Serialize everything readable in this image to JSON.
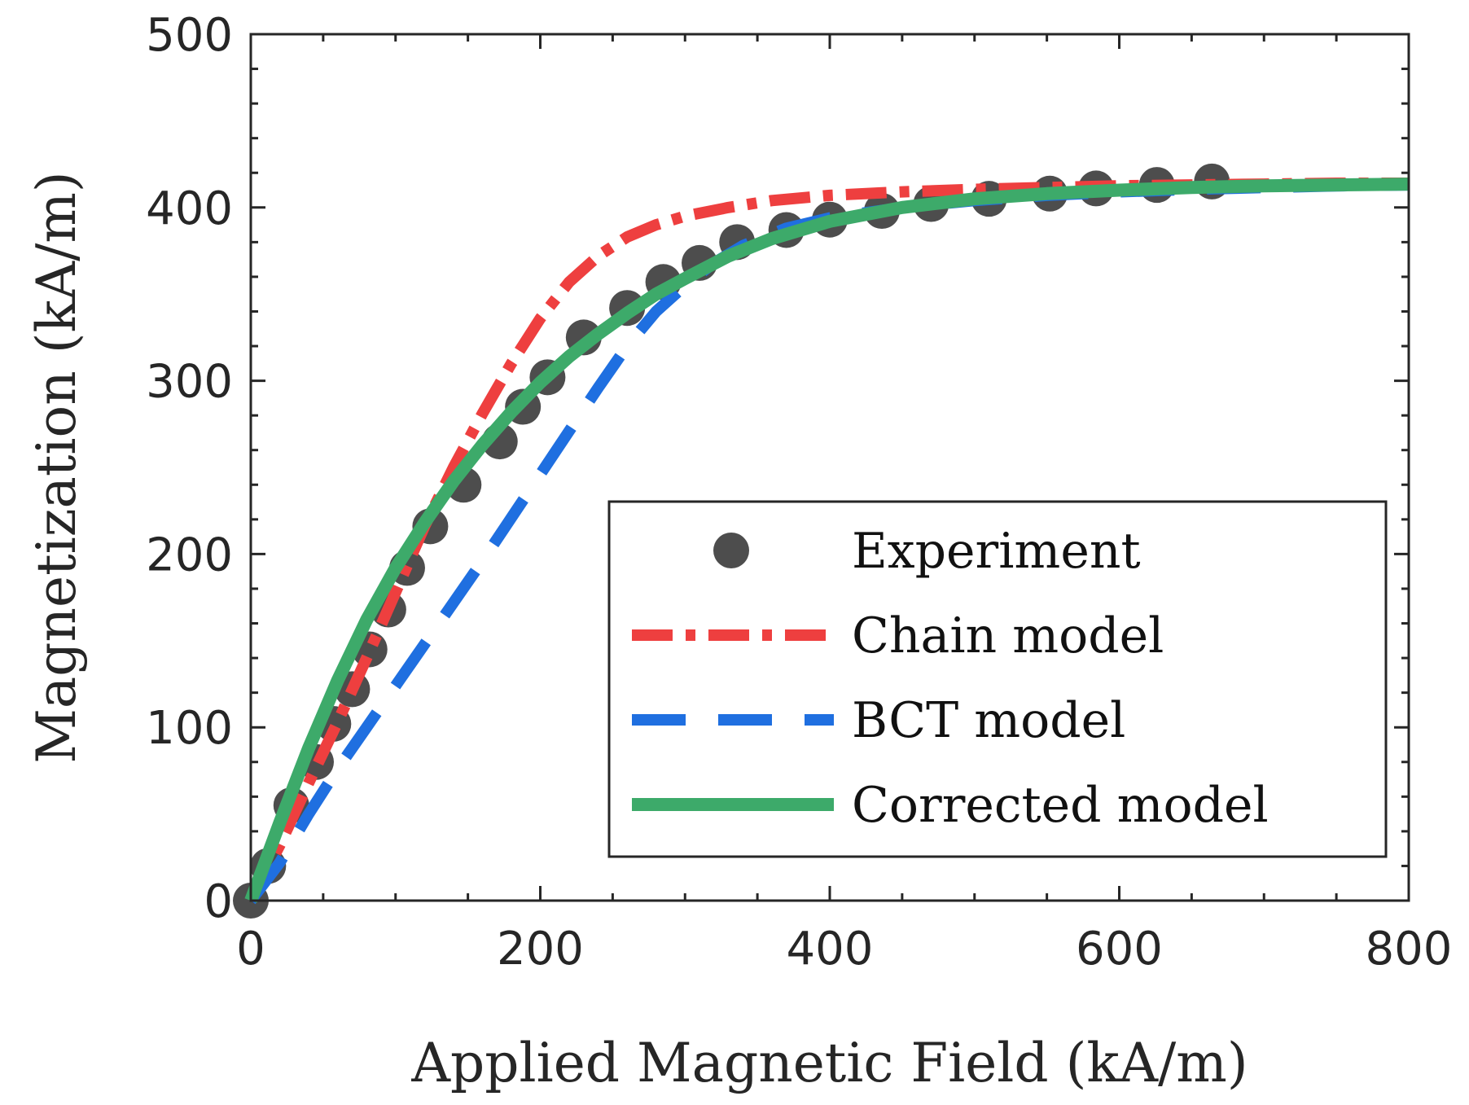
{
  "chart_data": {
    "type": "line",
    "title": "",
    "xlabel": "Applied Magnetic Field (kA/m)",
    "ylabel": "Magnetization (kA/m)",
    "xlim": [
      0,
      800
    ],
    "ylim": [
      0,
      500
    ],
    "xticks": [
      0,
      200,
      400,
      600,
      800
    ],
    "yticks": [
      0,
      100,
      200,
      300,
      400,
      500
    ],
    "grid": false,
    "legend_position": "bottom-right",
    "series": [
      {
        "name": "Experiment",
        "style": "markers",
        "color": "#4d4d4d",
        "x": [
          0,
          12,
          28,
          45,
          57,
          70,
          82,
          95,
          108,
          124,
          147,
          172,
          188,
          205,
          230,
          260,
          285,
          310,
          336,
          370,
          400,
          436,
          470,
          510,
          552,
          584,
          626,
          664
        ],
        "y": [
          0,
          20,
          55,
          80,
          102,
          122,
          145,
          168,
          192,
          216,
          240,
          265,
          285,
          302,
          325,
          342,
          357,
          368,
          380,
          387,
          393,
          398,
          402,
          405,
          408,
          411,
          413,
          415
        ]
      },
      {
        "name": "Chain model",
        "style": "dash-dot",
        "color": "#ee3f3f",
        "x": [
          0,
          20,
          40,
          60,
          80,
          100,
          120,
          140,
          160,
          180,
          200,
          220,
          240,
          260,
          280,
          300,
          330,
          360,
          400,
          450,
          500,
          550,
          600,
          650,
          700,
          750,
          800
        ],
        "y": [
          0,
          32,
          68,
          103,
          140,
          178,
          216,
          250,
          281,
          310,
          336,
          357,
          372,
          383,
          390,
          395,
          400,
          404,
          407,
          409,
          410.5,
          411.5,
          412.5,
          413,
          413.5,
          414,
          414
        ]
      },
      {
        "name": "BCT model",
        "style": "dashed",
        "color": "#1f6fe0",
        "x": [
          0,
          20,
          40,
          60,
          80,
          100,
          120,
          140,
          160,
          180,
          200,
          220,
          240,
          260,
          280,
          300,
          320,
          340,
          370,
          400,
          450,
          500,
          550,
          600,
          650,
          700,
          750,
          800
        ],
        "y": [
          0,
          22,
          50,
          76,
          100,
          124,
          148,
          172,
          196,
          221,
          246,
          271,
          296,
          320,
          340,
          355,
          368,
          378,
          388,
          394,
          400,
          404,
          407,
          409,
          410.5,
          411.5,
          412.5,
          413
        ]
      },
      {
        "name": "Corrected model",
        "style": "solid",
        "color": "#3daa6a",
        "x": [
          0,
          20,
          40,
          60,
          80,
          100,
          120,
          140,
          160,
          180,
          200,
          220,
          240,
          260,
          280,
          300,
          330,
          360,
          400,
          450,
          500,
          550,
          600,
          650,
          700,
          750,
          800
        ],
        "y": [
          0,
          45,
          88,
          127,
          162,
          192,
          218,
          242,
          263,
          282,
          299,
          314,
          327,
          339,
          350,
          359,
          372,
          382,
          392,
          400,
          405,
          408,
          410,
          411.5,
          412.5,
          413,
          413.5
        ]
      }
    ]
  }
}
